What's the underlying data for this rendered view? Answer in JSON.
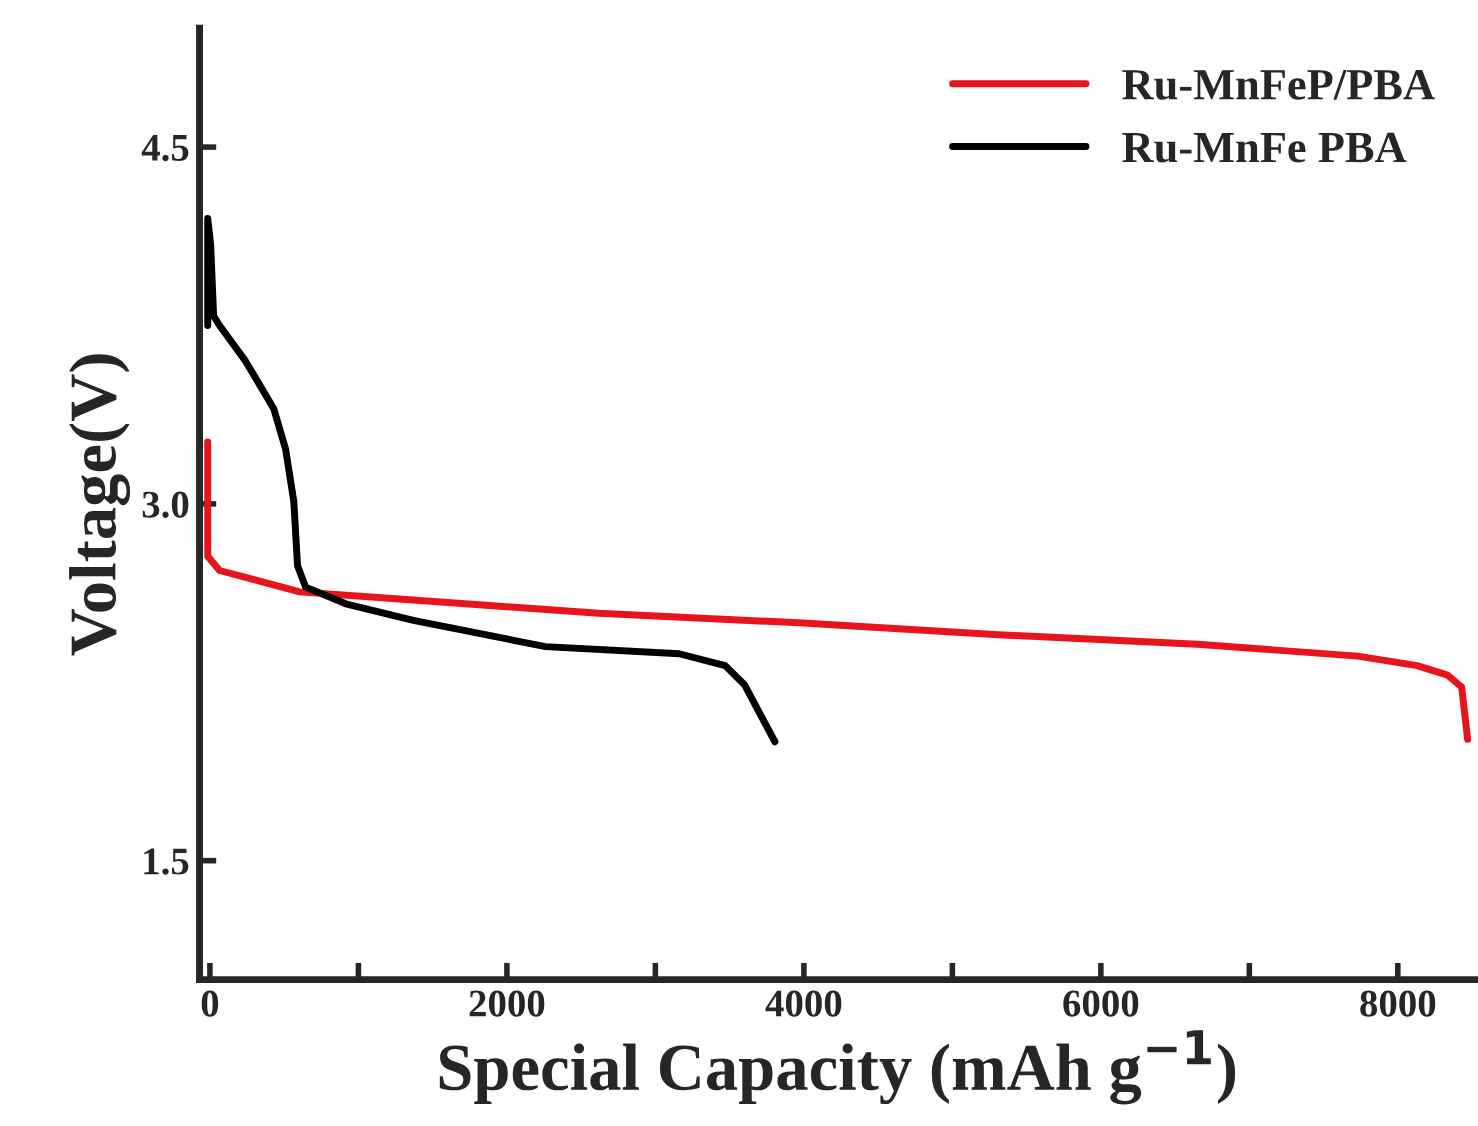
{
  "chart_data": {
    "type": "line",
    "xlabel": "Special Capacity (mAh g$^{−1}$)",
    "ylabel": "Voltage(V)",
    "xlim": [
      -70,
      8520
    ],
    "ylim": [
      1.0,
      5.0
    ],
    "xticks": [
      0,
      {
        "value": 1000,
        "label": null
      },
      2000,
      {
        "value": 3000,
        "label": null
      },
      4000,
      {
        "value": 5000,
        "label": null
      },
      6000,
      {
        "value": 7000,
        "label": null
      },
      8000
    ],
    "yticks": [
      1.5,
      {
        "value": 3,
        "label": "3.0"
      },
      4.5
    ],
    "grid": false,
    "legend": "top right",
    "line_style": "solid",
    "marker": "none",
    "series": [
      {
        "name": "Ru-MnFeP/PBA",
        "color": "#e8141c",
        "x": [
          -15,
          -15,
          65,
          605,
          1275,
          2620,
          3965,
          5310,
          6650,
          7730,
          8130,
          8335,
          8430,
          8470
        ],
        "values": [
          3.26,
          2.78,
          2.72,
          2.63,
          2.6,
          2.54,
          2.5,
          2.45,
          2.41,
          2.36,
          2.32,
          2.28,
          2.23,
          2.01
        ]
      },
      {
        "name": "Ru-MnFe PBA",
        "color": "#000000",
        "x": [
          -15,
          -15,
          5,
          25,
          65,
          240,
          430,
          510,
          565,
          590,
          645,
          915,
          1370,
          2260,
          3160,
          3470,
          3600,
          3805
        ],
        "values": [
          3.75,
          4.2,
          4.09,
          3.79,
          3.75,
          3.6,
          3.4,
          3.23,
          3.01,
          2.74,
          2.65,
          2.58,
          2.51,
          2.4,
          2.37,
          2.32,
          2.24,
          2.0
        ]
      }
    ]
  }
}
